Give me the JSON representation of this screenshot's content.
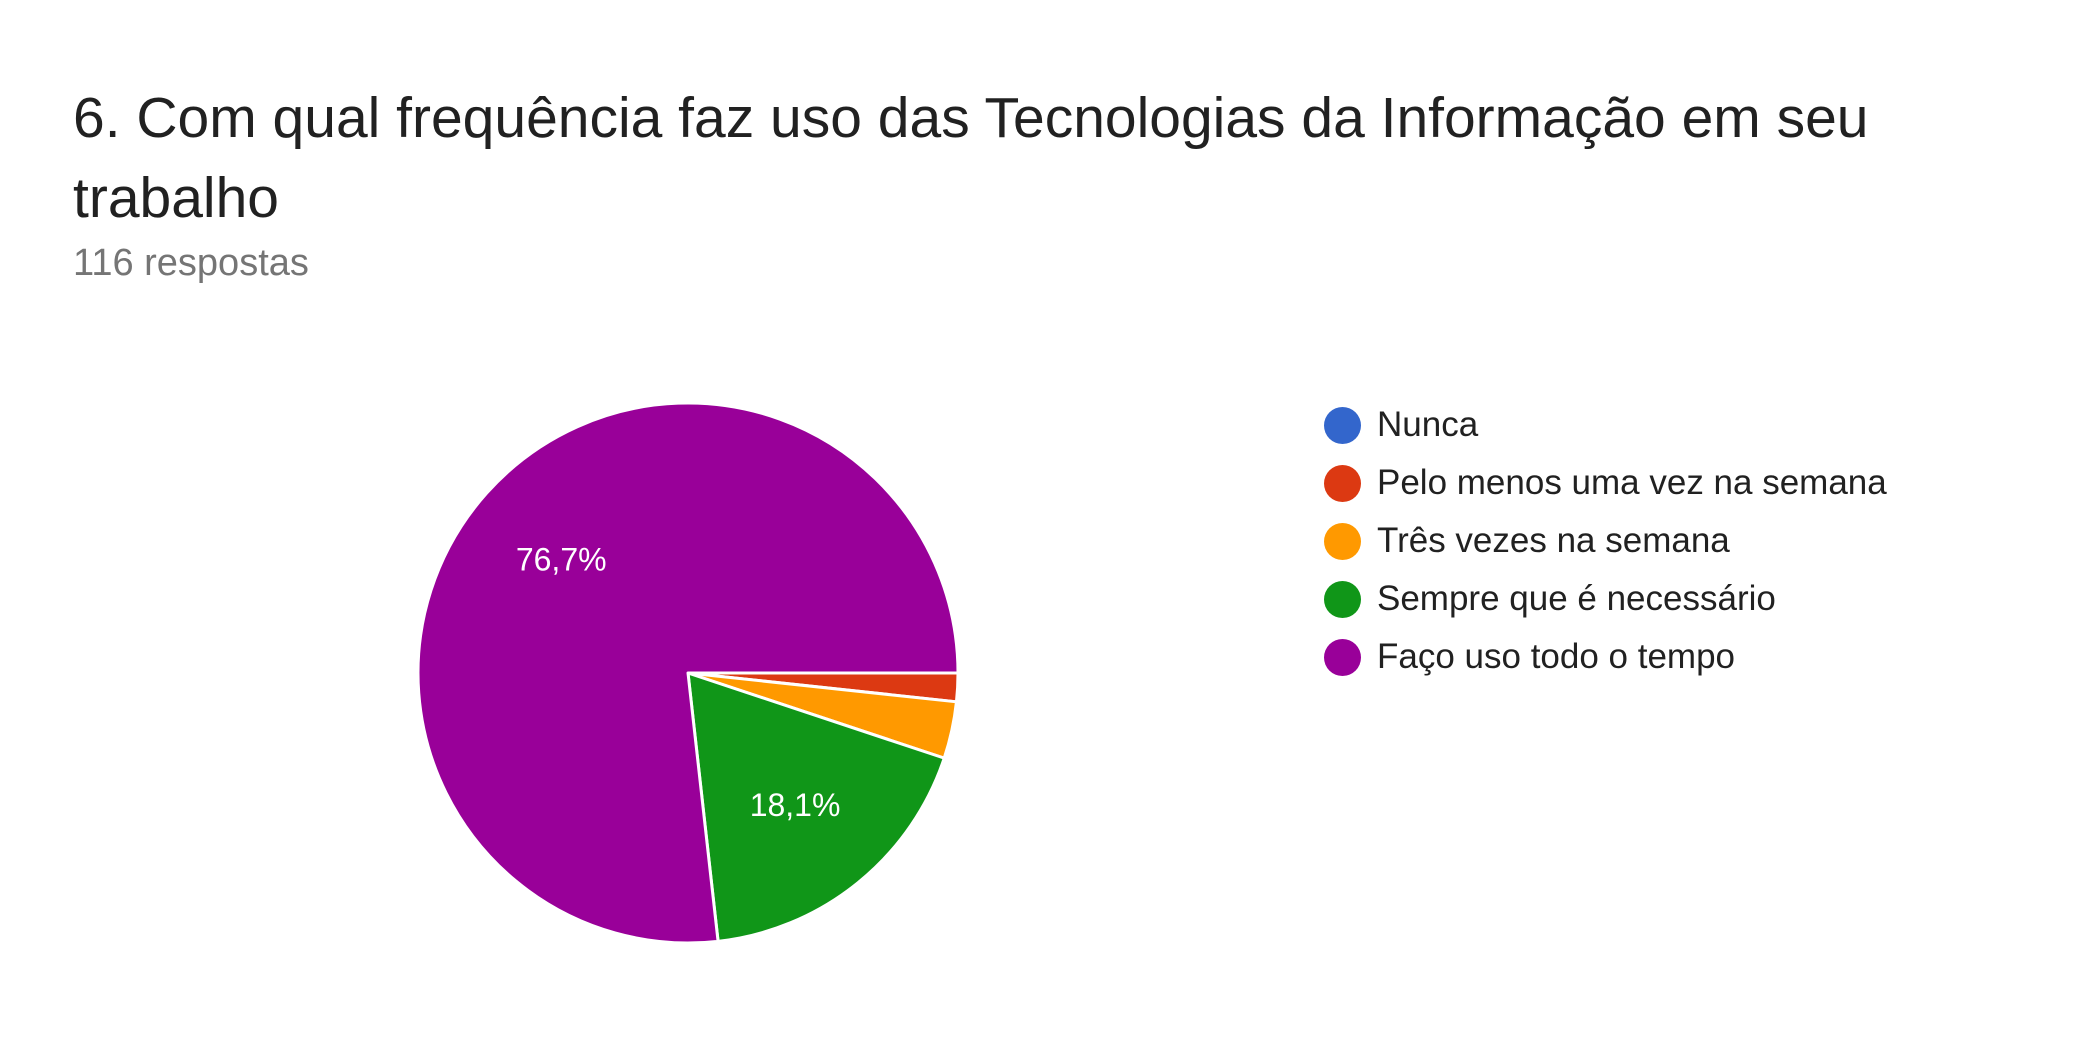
{
  "header": {
    "title": "6. Com qual frequência faz uso das Tecnologias da Informação em seu trabalho",
    "response_count": "116 respostas"
  },
  "chart_data": {
    "type": "pie",
    "categories": [
      "Nunca",
      "Pelo menos uma vez na semana",
      "Três vezes na semana",
      "Sempre que é necessário",
      "Faço uso todo o tempo"
    ],
    "values": [
      0,
      1.7,
      3.4,
      18.1,
      76.7
    ],
    "value_unit": "%",
    "data_labels": [
      "",
      "",
      "",
      "18,1%",
      "76,7%"
    ],
    "colors": [
      "#3366cc",
      "#dc3912",
      "#ff9900",
      "#109618",
      "#990099"
    ],
    "start": "3 o'clock, clockwise",
    "legend_position": "right"
  }
}
